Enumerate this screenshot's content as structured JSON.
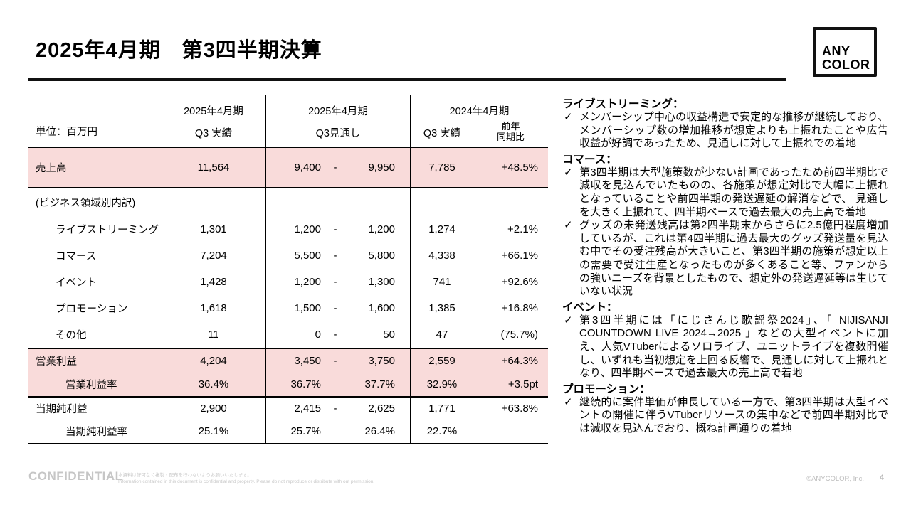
{
  "slide": {
    "title": "2025年4月期　第3四半期決算",
    "page_number": "4",
    "confidential": "CONFIDENTIAL",
    "disclaimer_jp": "本資料は許可なく複製・配布を行わないようお願いいたします。",
    "disclaimer_en": "Information contained in this document is confidential and property. Please do not reproduce or distribute with out permission.",
    "copyright": "©ANYCOLOR, Inc."
  },
  "logo": {
    "line1": "ANY",
    "line2": "COLOR"
  },
  "colors": {
    "highlight_pink": "#F9DBDA",
    "line_black": "#111111",
    "muted_gray": "#C6C6C6"
  },
  "table": {
    "unit_label": "単位：百万円",
    "columns": {
      "g1_period": "2025年4月期",
      "g1_sub": "Q3 実績",
      "g2_period": "2025年4月期",
      "g2_sub": "Q3見通し",
      "g3_period": "2024年4月期",
      "g3_sub": "Q3 実績",
      "g3_sub2a": "前年",
      "g3_sub2b": "同期比"
    },
    "rows": [
      {
        "label": "売上高",
        "indent": 0,
        "highlight": true,
        "actual": "11,564",
        "f_low": "9,400",
        "f_dash": "-",
        "f_high": "9,950",
        "py": "7,785",
        "yoy": "+48.5%"
      },
      {
        "label": "(ビジネス領域別内訳)",
        "indent": 0,
        "highlight": false,
        "actual": "",
        "f_low": "",
        "f_dash": "",
        "f_high": "",
        "py": "",
        "yoy": ""
      },
      {
        "label": "ライブストリーミング",
        "indent": 1,
        "highlight": false,
        "actual": "1,301",
        "f_low": "1,200",
        "f_dash": "-",
        "f_high": "1,200",
        "py": "1,274",
        "yoy": "+2.1%"
      },
      {
        "label": "コマース",
        "indent": 1,
        "highlight": false,
        "actual": "7,204",
        "f_low": "5,500",
        "f_dash": "-",
        "f_high": "5,800",
        "py": "4,338",
        "yoy": "+66.1%"
      },
      {
        "label": "イベント",
        "indent": 1,
        "highlight": false,
        "actual": "1,428",
        "f_low": "1,200",
        "f_dash": "-",
        "f_high": "1,300",
        "py": "741",
        "yoy": "+92.6%"
      },
      {
        "label": "プロモーション",
        "indent": 1,
        "highlight": false,
        "actual": "1,618",
        "f_low": "1,500",
        "f_dash": "-",
        "f_high": "1,600",
        "py": "1,385",
        "yoy": "+16.8%"
      },
      {
        "label": "その他",
        "indent": 1,
        "highlight": false,
        "actual": "11",
        "f_low": "0",
        "f_dash": "-",
        "f_high": "50",
        "py": "47",
        "yoy": "(75.7%)"
      },
      {
        "label": "営業利益",
        "indent": 0,
        "highlight": true,
        "actual": "4,204",
        "f_low": "3,450",
        "f_dash": "-",
        "f_high": "3,750",
        "py": "2,559",
        "yoy": "+64.3%"
      },
      {
        "label": "営業利益率",
        "indent": 2,
        "highlight": true,
        "actual": "36.4%",
        "f_low": "36.7%",
        "f_dash": "",
        "f_high": "37.7%",
        "py": "32.9%",
        "yoy": "+3.5pt"
      },
      {
        "label": "当期純利益",
        "indent": 0,
        "highlight": false,
        "actual": "2,900",
        "f_low": "2,415",
        "f_dash": "-",
        "f_high": "2,625",
        "py": "1,771",
        "yoy": "+63.8%"
      },
      {
        "label": "当期純利益率",
        "indent": 2,
        "highlight": false,
        "actual": "25.1%",
        "f_low": "25.7%",
        "f_dash": "",
        "f_high": "26.4%",
        "py": "22.7%",
        "yoy": ""
      }
    ]
  },
  "panel": {
    "check_mark": "✓",
    "sections": [
      {
        "heading": "ライブストリーミング：",
        "bullets": [
          "メンバーシップ中心の収益構造で安定的な推移が継続しており、メンバーシップ数の増加推移が想定よりも上振れたことや広告収益が好調であったため、見通しに対して上振れでの着地"
        ]
      },
      {
        "heading": "コマース：",
        "bullets": [
          "第3四半期は大型施策数が少ない計画であったため前四半期比で減収を見込んでいたものの、各施策が想定対比で大幅に上振れとなっていることや前四半期の発送遅延の解消などで、 見通しを大きく上振れて、四半期ベースで過去最大の売上高で着地",
          "グッズの未発送残高は第2四半期末からさらに2.5億円程度増加しているが、これは第4四半期に過去最大のグッズ発送量を見込む中でその受注残高が大きいこと、第3四半期の施策が想定以上の需要で受注生産となったものが多くあること等、ファンからの強いニーズを背景としたもので、想定外の発送遅延等は生じていない状況"
        ]
      },
      {
        "heading": "イベント：",
        "bullets": [
          "第3四半期には「にじさんじ歌謡祭2024」、「 NIJISANJI COUNTDOWN LIVE 2024→2025 」などの大型イベントに加え、人気VTuberによるソロライブ、ユニットライブを複数開催し、いずれも当初想定を上回る反響で、見通しに対して上振れとなり、四半期ベースで過去最大の売上高で着地"
        ]
      },
      {
        "heading": "プロモーション：",
        "bullets": [
          "継続的に案件単価が伸長している一方で、第3四半期は大型イベントの開催に伴うVTuberリソースの集中などで前四半期対比では減収を見込んでおり、概ね計画通りの着地"
        ]
      }
    ]
  }
}
